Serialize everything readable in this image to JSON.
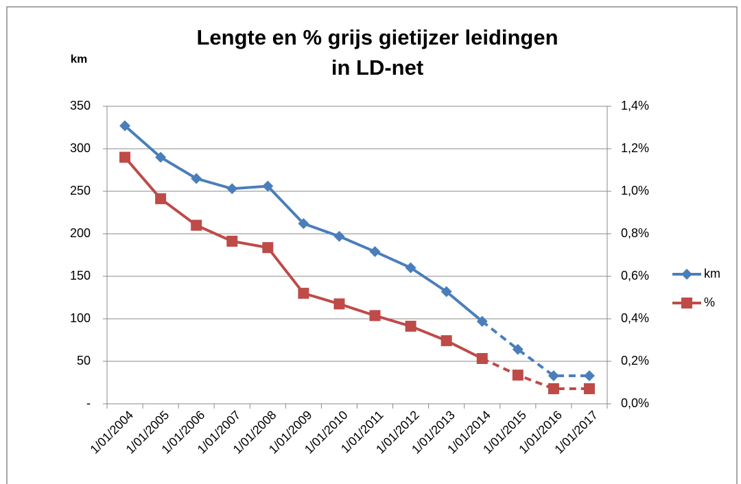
{
  "chart_data": {
    "type": "line",
    "title": [
      "Lengte en % grijs gietijzer leidingen",
      "in LD-net"
    ],
    "y_label": "km",
    "categories": [
      "1/01/2004",
      "1/01/2005",
      "1/01/2006",
      "1/01/2007",
      "1/01/2008",
      "1/01/2009",
      "1/01/2010",
      "1/01/2011",
      "1/01/2012",
      "1/01/2013",
      "1/01/2014",
      "1/01/2015",
      "1/01/2016",
      "1/01/2017"
    ],
    "series": [
      {
        "name": "km",
        "color": "#4a7ebb",
        "marker": "diamond",
        "dashed_from_index": 10,
        "values": [
          327,
          290,
          265,
          253,
          256,
          212,
          197,
          179,
          160,
          132,
          97,
          64,
          33,
          33
        ]
      },
      {
        "name": "%",
        "color": "#be4b48",
        "marker": "square",
        "axis": "y2",
        "dashed_from_index": 10,
        "values": [
          1.16,
          0.965,
          0.84,
          0.765,
          0.735,
          0.52,
          0.47,
          0.415,
          0.365,
          0.297,
          0.213,
          0.135,
          0.071,
          0.071
        ]
      }
    ],
    "ylim": [
      0,
      350
    ],
    "yticks": [
      {
        "value": 0,
        "label": "-"
      },
      50,
      100,
      150,
      200,
      250,
      300,
      350
    ],
    "y2lim": [
      0,
      1.4
    ],
    "y2ticks": [
      {
        "value": 0,
        "label": "0,0%"
      },
      {
        "value": 0.2,
        "label": "0,2%"
      },
      {
        "value": 0.4,
        "label": "0,4%"
      },
      {
        "value": 0.6,
        "label": "0,6%"
      },
      {
        "value": 0.8,
        "label": "0,8%"
      },
      {
        "value": 1.0,
        "label": "1,0%"
      },
      {
        "value": 1.2,
        "label": "1,2%"
      },
      {
        "value": 1.4,
        "label": "1,4%"
      }
    ],
    "grid": true,
    "legend": "right"
  }
}
